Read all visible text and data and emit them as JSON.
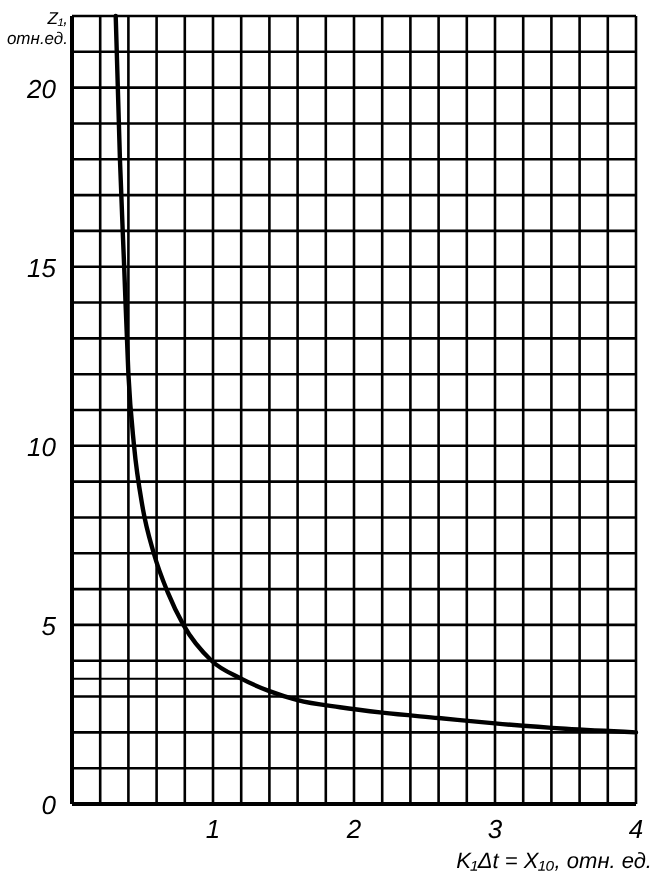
{
  "chart_data": {
    "type": "line",
    "ylabel": "Z₁, отн.ед.",
    "xlabel": "K₁Δt = X₁₀, отн. ед.",
    "xlim": [
      0,
      4
    ],
    "ylim": [
      0,
      22
    ],
    "xticks": [
      {
        "value": 0.2,
        "label": null
      },
      {
        "value": 0.4,
        "label": null
      },
      {
        "value": 0.6,
        "label": null
      },
      {
        "value": 0.8,
        "label": null
      },
      1,
      {
        "value": 1.2,
        "label": null
      },
      {
        "value": 1.4,
        "label": null
      },
      {
        "value": 1.6,
        "label": null
      },
      {
        "value": 1.8,
        "label": null
      },
      2,
      {
        "value": 2.2,
        "label": null
      },
      {
        "value": 2.4,
        "label": null
      },
      {
        "value": 2.6,
        "label": null
      },
      {
        "value": 2.8,
        "label": null
      },
      3,
      {
        "value": 3.2,
        "label": null
      },
      {
        "value": 3.4,
        "label": null
      },
      {
        "value": 3.6,
        "label": null
      },
      {
        "value": 3.8,
        "label": null
      },
      4
    ],
    "yticks": [
      0,
      {
        "value": 1,
        "label": null
      },
      {
        "value": 2,
        "label": null
      },
      {
        "value": 3,
        "label": null
      },
      {
        "value": 4,
        "label": null
      },
      5,
      {
        "value": 6,
        "label": null
      },
      {
        "value": 7,
        "label": null
      },
      {
        "value": 8,
        "label": null
      },
      {
        "value": 9,
        "label": null
      },
      10,
      {
        "value": 11,
        "label": null
      },
      {
        "value": 12,
        "label": null
      },
      {
        "value": 13,
        "label": null
      },
      {
        "value": 14,
        "label": null
      },
      15,
      {
        "value": 16,
        "label": null
      },
      {
        "value": 17,
        "label": null
      },
      {
        "value": 18,
        "label": null
      },
      {
        "value": 19,
        "label": null
      },
      20,
      {
        "value": 21,
        "label": null
      },
      {
        "value": 22,
        "label": null
      }
    ],
    "grid": true,
    "ref_lines": [
      {
        "axis": "y",
        "value": 3.5,
        "label": null,
        "color": "#000000"
      }
    ],
    "series": [
      {
        "color": "#000000",
        "x": [
          0.31,
          0.34,
          0.37,
          0.4,
          0.44,
          0.5,
          0.58,
          0.68,
          0.79,
          0.99,
          1.2,
          1.4,
          1.6,
          1.9,
          2.2,
          2.6,
          3,
          3.5,
          4
        ],
        "values": [
          22,
          18,
          15,
          12,
          10,
          8.3,
          7,
          5.9,
          5,
          4,
          3.5,
          3.15,
          2.9,
          2.7,
          2.55,
          2.4,
          2.25,
          2.1,
          2
        ]
      }
    ]
  }
}
